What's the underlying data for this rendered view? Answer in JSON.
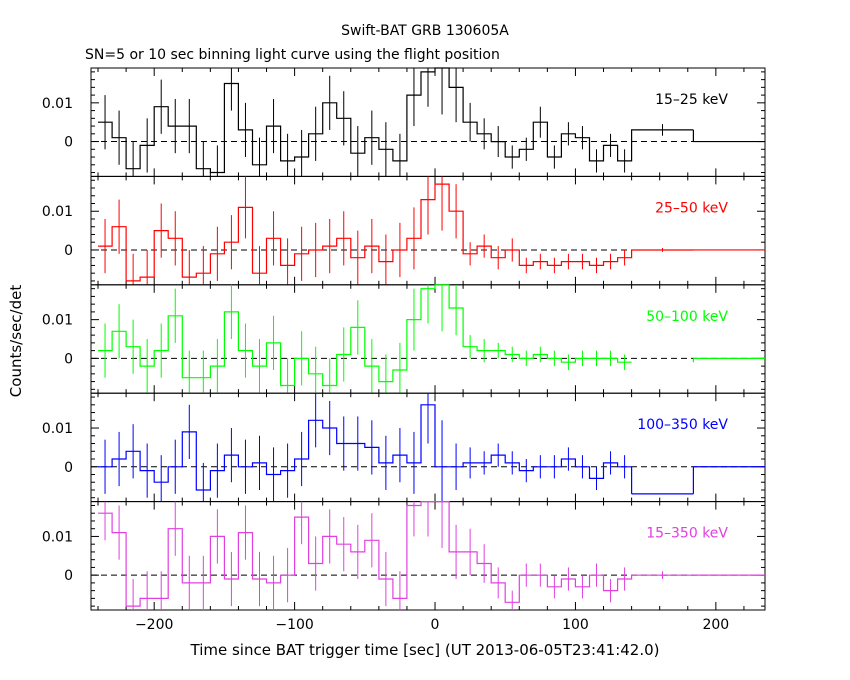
{
  "chart_data": {
    "type": "line",
    "title": "Swift-BAT GRB 130605A",
    "subtitle": "SN=5 or 10 sec binning light curve using the flight position",
    "xlabel": "Time since BAT trigger time [sec] (UT 2013-06-05T23:41:42.0)",
    "ylabel": "Counts/sec/det",
    "xlim": [
      -245,
      235
    ],
    "ylim": [
      -0.009,
      0.019
    ],
    "x_ticks": [
      -200,
      -100,
      0,
      100,
      200
    ],
    "y_ticks": [
      0,
      0.01
    ],
    "y_tick_labels": [
      "0",
      "0.01"
    ],
    "grid": false,
    "zero_line": "dashed",
    "panels": [
      {
        "name": "15–25 keV",
        "color": "#000000",
        "x": [
          -235,
          -225,
          -215,
          -205,
          -195,
          -185,
          -175,
          -165,
          -155,
          -145,
          -135,
          -125,
          -115,
          -105,
          -95,
          -85,
          -75,
          -65,
          -55,
          -45,
          -35,
          -25,
          -15,
          -5,
          5,
          15,
          25,
          35,
          45,
          55,
          65,
          75,
          85,
          95,
          105,
          115,
          125,
          135,
          162
        ],
        "xerr": [
          5,
          5,
          5,
          5,
          5,
          5,
          5,
          5,
          5,
          5,
          5,
          5,
          5,
          5,
          5,
          5,
          5,
          5,
          5,
          5,
          5,
          5,
          5,
          5,
          5,
          5,
          5,
          5,
          5,
          5,
          5,
          5,
          5,
          5,
          5,
          5,
          5,
          5,
          22
        ],
        "y": [
          0.005,
          0.001,
          -0.007,
          -0.001,
          0.009,
          0.004,
          0.004,
          -0.007,
          -0.008,
          0.015,
          0.003,
          -0.006,
          0.004,
          -0.005,
          -0.004,
          0.002,
          0.01,
          0.006,
          -0.003,
          0.001,
          -0.002,
          -0.005,
          0.012,
          0.018,
          0.019,
          0.014,
          0.005,
          0.002,
          0.0,
          -0.004,
          -0.002,
          0.005,
          -0.004,
          0.002,
          0.001,
          -0.005,
          -0.001,
          -0.005,
          0.003
        ],
        "yerr": [
          0.007,
          0.007,
          0.007,
          0.007,
          0.007,
          0.007,
          0.007,
          0.007,
          0.007,
          0.007,
          0.007,
          0.007,
          0.007,
          0.007,
          0.007,
          0.007,
          0.007,
          0.007,
          0.007,
          0.007,
          0.007,
          0.007,
          0.008,
          0.009,
          0.012,
          0.009,
          0.005,
          0.004,
          0.004,
          0.003,
          0.003,
          0.004,
          0.003,
          0.003,
          0.003,
          0.003,
          0.003,
          0.003,
          0.0015
        ],
        "tail_x": [
          184,
          235
        ],
        "tail_y": 0.0
      },
      {
        "name": "25–50 keV",
        "color": "#ff0000",
        "x": [
          -235,
          -225,
          -215,
          -205,
          -195,
          -185,
          -175,
          -165,
          -155,
          -145,
          -135,
          -125,
          -115,
          -105,
          -95,
          -85,
          -75,
          -65,
          -55,
          -45,
          -35,
          -25,
          -15,
          -5,
          5,
          15,
          25,
          35,
          45,
          55,
          65,
          75,
          85,
          95,
          105,
          115,
          125,
          135,
          162
        ],
        "xerr": [
          5,
          5,
          5,
          5,
          5,
          5,
          5,
          5,
          5,
          5,
          5,
          5,
          5,
          5,
          5,
          5,
          5,
          5,
          5,
          5,
          5,
          5,
          5,
          5,
          5,
          5,
          5,
          5,
          5,
          5,
          5,
          5,
          5,
          5,
          5,
          5,
          5,
          5,
          22
        ],
        "y": [
          0.001,
          0.006,
          -0.008,
          -0.007,
          0.005,
          0.003,
          -0.007,
          -0.006,
          -0.001,
          0.002,
          0.011,
          -0.006,
          0.003,
          -0.004,
          -0.001,
          0.0,
          0.001,
          0.003,
          -0.002,
          0.001,
          -0.003,
          0.0,
          0.003,
          0.013,
          0.017,
          0.01,
          -0.001,
          0.001,
          -0.002,
          0.0,
          -0.004,
          -0.003,
          -0.004,
          -0.003,
          -0.003,
          -0.004,
          -0.003,
          -0.002,
          0.0
        ],
        "yerr": [
          0.007,
          0.007,
          0.007,
          0.007,
          0.007,
          0.007,
          0.007,
          0.007,
          0.007,
          0.007,
          0.008,
          0.007,
          0.007,
          0.007,
          0.007,
          0.007,
          0.007,
          0.007,
          0.007,
          0.007,
          0.007,
          0.007,
          0.008,
          0.009,
          0.012,
          0.007,
          0.003,
          0.003,
          0.003,
          0.003,
          0.002,
          0.002,
          0.002,
          0.002,
          0.002,
          0.002,
          0.002,
          0.002,
          0.0005
        ],
        "tail_x": [
          184,
          235
        ],
        "tail_y": 0.0
      },
      {
        "name": "50–100 keV",
        "color": "#00ff00",
        "x": [
          -235,
          -225,
          -215,
          -205,
          -195,
          -185,
          -175,
          -165,
          -155,
          -145,
          -135,
          -125,
          -115,
          -105,
          -95,
          -85,
          -75,
          -65,
          -55,
          -45,
          -35,
          -25,
          -15,
          -5,
          5,
          15,
          25,
          35,
          45,
          55,
          65,
          75,
          85,
          95,
          105,
          115,
          125,
          135
        ],
        "xerr": [
          5,
          5,
          5,
          5,
          5,
          5,
          5,
          5,
          5,
          5,
          5,
          5,
          5,
          5,
          5,
          5,
          5,
          5,
          5,
          5,
          5,
          5,
          5,
          5,
          5,
          5,
          5,
          5,
          5,
          5,
          5,
          5,
          5,
          5,
          5,
          5,
          5,
          5
        ],
        "y": [
          0.002,
          0.007,
          0.003,
          -0.002,
          0.002,
          0.011,
          -0.005,
          -0.005,
          -0.002,
          0.012,
          0.002,
          -0.002,
          0.004,
          -0.007,
          0.0,
          -0.004,
          -0.007,
          0.001,
          0.008,
          -0.002,
          -0.006,
          -0.003,
          0.01,
          0.018,
          0.019,
          0.013,
          0.003,
          0.002,
          0.002,
          0.001,
          0.0,
          0.001,
          0.0,
          -0.001,
          0.0,
          0.0,
          0.0,
          -0.001
        ],
        "yerr": [
          0.007,
          0.007,
          0.007,
          0.007,
          0.007,
          0.007,
          0.007,
          0.007,
          0.007,
          0.007,
          0.007,
          0.007,
          0.007,
          0.007,
          0.007,
          0.007,
          0.007,
          0.007,
          0.007,
          0.007,
          0.007,
          0.007,
          0.008,
          0.009,
          0.012,
          0.007,
          0.003,
          0.003,
          0.002,
          0.002,
          0.002,
          0.002,
          0.002,
          0.002,
          0.002,
          0.002,
          0.002,
          0.002
        ],
        "tail_x": [
          184,
          235
        ],
        "tail_y": 0.0
      },
      {
        "name": "100–350 keV",
        "color": "#0000ff",
        "x": [
          -235,
          -225,
          -215,
          -205,
          -195,
          -185,
          -175,
          -165,
          -155,
          -145,
          -135,
          -125,
          -115,
          -105,
          -95,
          -85,
          -75,
          -65,
          -55,
          -45,
          -35,
          -25,
          -15,
          -5,
          5,
          15,
          25,
          35,
          45,
          55,
          65,
          75,
          85,
          95,
          105,
          115,
          125,
          135
        ],
        "xerr": [
          5,
          5,
          5,
          5,
          5,
          5,
          5,
          5,
          5,
          5,
          5,
          5,
          5,
          5,
          5,
          5,
          5,
          5,
          5,
          5,
          5,
          5,
          5,
          5,
          5,
          5,
          5,
          5,
          5,
          5,
          5,
          5,
          5,
          5,
          5,
          5,
          5,
          5
        ],
        "y": [
          0.0,
          0.002,
          0.004,
          -0.001,
          -0.004,
          0.0,
          0.009,
          -0.006,
          -0.001,
          0.003,
          0.0,
          0.001,
          -0.002,
          -0.001,
          0.002,
          0.012,
          0.01,
          0.006,
          0.006,
          0.005,
          0.001,
          0.003,
          0.001,
          0.016,
          0.0,
          0.0,
          0.001,
          0.001,
          0.003,
          0.001,
          -0.001,
          0.0,
          0.0,
          0.002,
          0.0,
          -0.003,
          0.001,
          0.0
        ],
        "yerr": [
          0.007,
          0.007,
          0.007,
          0.007,
          0.007,
          0.007,
          0.007,
          0.007,
          0.007,
          0.007,
          0.007,
          0.007,
          0.007,
          0.007,
          0.007,
          0.007,
          0.007,
          0.007,
          0.007,
          0.007,
          0.007,
          0.007,
          0.008,
          0.01,
          0.012,
          0.006,
          0.004,
          0.003,
          0.003,
          0.003,
          0.003,
          0.003,
          0.003,
          0.003,
          0.003,
          0.003,
          0.003,
          0.003
        ],
        "tail_x": [
          140,
          184
        ],
        "tail_y": -0.007,
        "tail2_x": [
          184,
          235
        ],
        "tail2_y": 0.0
      },
      {
        "name": "15–350 keV",
        "color": "#e040e0",
        "x": [
          -235,
          -225,
          -215,
          -205,
          -195,
          -185,
          -175,
          -165,
          -155,
          -145,
          -135,
          -125,
          -115,
          -105,
          -95,
          -85,
          -75,
          -65,
          -55,
          -45,
          -35,
          -25,
          -15,
          -5,
          5,
          15,
          25,
          35,
          45,
          55,
          65,
          75,
          85,
          95,
          105,
          115,
          125,
          135,
          162
        ],
        "xerr": [
          5,
          5,
          5,
          5,
          5,
          5,
          5,
          5,
          5,
          5,
          5,
          5,
          5,
          5,
          5,
          5,
          5,
          5,
          5,
          5,
          5,
          5,
          5,
          5,
          5,
          5,
          5,
          5,
          5,
          5,
          5,
          5,
          5,
          5,
          5,
          5,
          5,
          5,
          22
        ],
        "y": [
          0.016,
          0.011,
          -0.008,
          -0.006,
          -0.006,
          0.012,
          -0.002,
          -0.002,
          0.01,
          -0.001,
          0.011,
          -0.001,
          -0.002,
          0.0,
          0.015,
          0.003,
          0.01,
          0.008,
          0.006,
          0.009,
          -0.001,
          -0.006,
          0.018,
          0.019,
          0.019,
          0.006,
          0.006,
          0.003,
          -0.002,
          -0.007,
          0.0,
          0.0,
          -0.003,
          -0.001,
          -0.003,
          0.0,
          -0.004,
          -0.001,
          0.0
        ],
        "yerr": [
          0.007,
          0.007,
          0.007,
          0.007,
          0.007,
          0.007,
          0.007,
          0.007,
          0.007,
          0.007,
          0.007,
          0.007,
          0.007,
          0.007,
          0.007,
          0.007,
          0.007,
          0.007,
          0.007,
          0.007,
          0.007,
          0.007,
          0.008,
          0.009,
          0.012,
          0.007,
          0.006,
          0.005,
          0.004,
          0.003,
          0.003,
          0.003,
          0.003,
          0.003,
          0.003,
          0.003,
          0.003,
          0.003,
          0.001
        ],
        "tail_x": [
          184,
          235
        ],
        "tail_y": 0.0
      }
    ]
  }
}
